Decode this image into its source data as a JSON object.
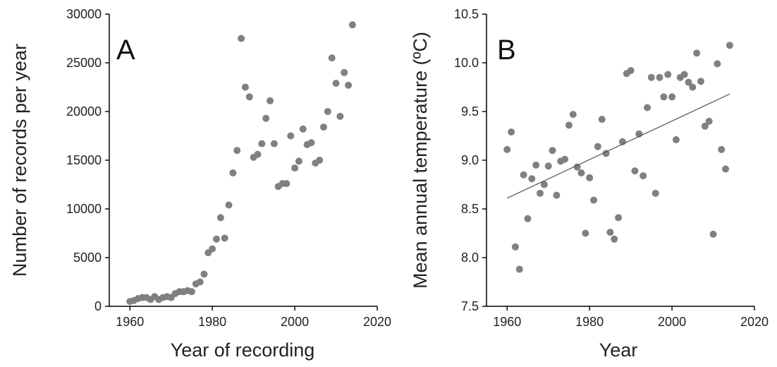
{
  "chart_data": [
    {
      "panel": "A",
      "type": "scatter",
      "xlabel": "Year of recording",
      "ylabel": "Number of records per year",
      "xlim": [
        1955,
        2020
      ],
      "ylim": [
        0,
        30000
      ],
      "xticks": [
        1960,
        1980,
        2000,
        2020
      ],
      "yticks": [
        0,
        5000,
        10000,
        15000,
        20000,
        25000,
        30000
      ],
      "grid": false,
      "x": [
        1960,
        1961,
        1962,
        1963,
        1964,
        1965,
        1966,
        1967,
        1968,
        1969,
        1970,
        1971,
        1972,
        1973,
        1974,
        1975,
        1976,
        1977,
        1978,
        1979,
        1980,
        1981,
        1982,
        1983,
        1984,
        1985,
        1986,
        1987,
        1988,
        1989,
        1990,
        1991,
        1992,
        1993,
        1994,
        1995,
        1996,
        1997,
        1998,
        1999,
        2000,
        2001,
        2002,
        2003,
        2004,
        2005,
        2006,
        2007,
        2008,
        2009,
        2010,
        2011,
        2012,
        2013,
        2014
      ],
      "y": [
        500,
        600,
        800,
        900,
        900,
        700,
        1000,
        700,
        900,
        1000,
        900,
        1300,
        1500,
        1500,
        1600,
        1500,
        2300,
        2500,
        3300,
        5500,
        5900,
        6900,
        9100,
        7000,
        10400,
        13700,
        16000,
        27500,
        22500,
        21500,
        15300,
        15600,
        16700,
        19300,
        21100,
        16700,
        12300,
        12600,
        12600,
        17500,
        14200,
        14900,
        18200,
        16600,
        16800,
        14700,
        15000,
        18400,
        20000,
        25500,
        22900,
        19500,
        24000,
        22700,
        28900
      ]
    },
    {
      "panel": "B",
      "type": "scatter",
      "xlabel": "Year",
      "ylabel": "Mean annual temperature (ºC)",
      "xlim": [
        1955,
        2020
      ],
      "ylim": [
        7.5,
        10.5
      ],
      "xticks": [
        1960,
        1980,
        2000,
        2020
      ],
      "yticks": [
        7.5,
        8.0,
        8.5,
        9.0,
        9.5,
        10.0,
        10.5
      ],
      "grid": false,
      "x": [
        1960,
        1961,
        1962,
        1963,
        1964,
        1965,
        1966,
        1967,
        1968,
        1969,
        1970,
        1971,
        1972,
        1973,
        1974,
        1975,
        1976,
        1977,
        1978,
        1979,
        1980,
        1981,
        1982,
        1983,
        1984,
        1985,
        1986,
        1987,
        1988,
        1989,
        1990,
        1991,
        1992,
        1993,
        1994,
        1995,
        1996,
        1997,
        1998,
        1999,
        2000,
        2001,
        2002,
        2003,
        2004,
        2005,
        2006,
        2007,
        2008,
        2009,
        2010,
        2011,
        2012,
        2013,
        2014
      ],
      "y": [
        9.11,
        9.29,
        8.11,
        7.88,
        8.85,
        8.4,
        8.81,
        8.95,
        8.66,
        8.75,
        8.94,
        9.1,
        8.64,
        8.99,
        9.01,
        9.36,
        9.47,
        8.93,
        8.87,
        8.25,
        8.82,
        8.59,
        9.14,
        9.42,
        9.07,
        8.26,
        8.19,
        8.41,
        9.19,
        9.89,
        9.92,
        8.89,
        9.27,
        8.84,
        9.54,
        9.85,
        8.66,
        9.85,
        9.65,
        9.88,
        9.65,
        9.21,
        9.85,
        9.88,
        9.8,
        9.75,
        10.1,
        9.81,
        9.35,
        9.4,
        8.24,
        9.99,
        9.11,
        8.91,
        10.18
      ],
      "trend": {
        "x": [
          1960,
          2014
        ],
        "y": [
          8.61,
          9.68
        ]
      }
    }
  ]
}
